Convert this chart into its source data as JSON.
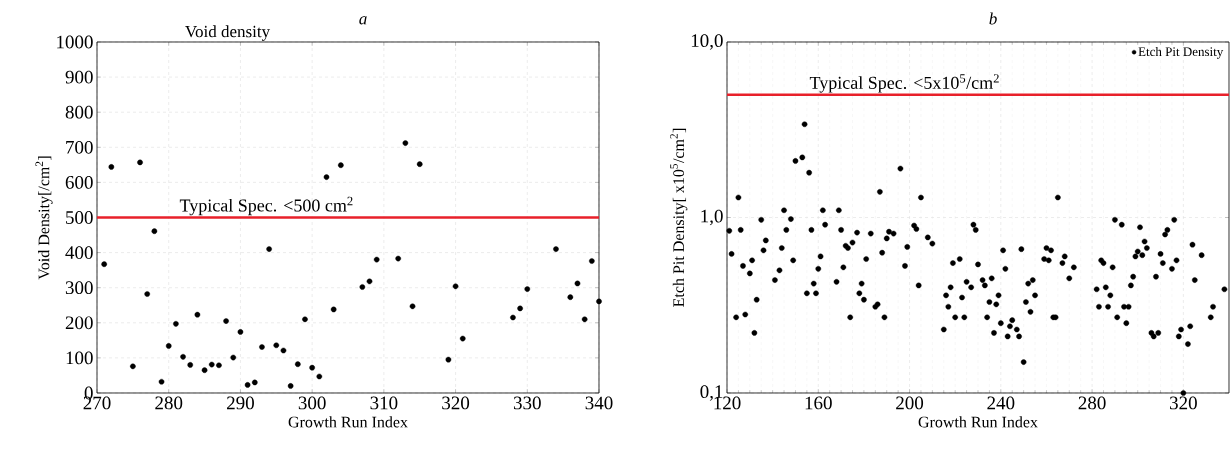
{
  "chart_data": [
    {
      "type": "scatter",
      "title": "a",
      "xlabel": "Growth Run Index",
      "ylabel": "Void Density[/cm$^{2}$]",
      "annotations": [
        "Void density"
      ],
      "x": [
        271,
        272,
        275,
        276,
        277,
        278,
        279,
        280,
        281,
        282,
        283,
        284,
        285,
        286,
        287,
        288,
        289,
        290,
        291,
        292,
        293,
        294,
        295,
        296,
        297,
        298,
        299,
        300,
        301,
        302,
        303,
        304,
        307,
        308,
        309,
        312,
        313,
        314,
        315,
        319,
        320,
        321,
        328,
        329,
        330,
        334,
        336,
        337,
        338,
        339,
        340
      ],
      "series": [
        {
          "color": "#000000",
          "values": [
            367,
            644,
            76,
            657,
            282,
            461,
            32,
            134,
            197,
            103,
            80,
            223,
            65,
            81,
            79,
            205,
            101,
            174,
            23,
            30,
            131,
            410,
            136,
            121,
            20,
            82,
            210,
            72,
            47,
            615,
            238,
            649,
            302,
            318,
            380,
            383,
            712,
            247,
            652,
            95,
            304,
            155,
            215,
            241,
            296,
            410,
            273,
            312,
            210,
            376,
            261
          ]
        }
      ],
      "xlim": [
        270,
        340
      ],
      "xticks": [
        270,
        280,
        290,
        300,
        310,
        320,
        330,
        340
      ],
      "ylim": [
        0,
        1000
      ],
      "yticks": [
        0,
        100,
        200,
        300,
        400,
        500,
        600,
        700,
        800,
        900,
        1000
      ],
      "ref_lines": [
        {
          "axis": "y",
          "value": 500,
          "label": "Typical Spec. <500 cm$^{2}$",
          "color": "#e8202a"
        }
      ],
      "grid": true,
      "marker": "circle",
      "legend": false
    },
    {
      "type": "scatter",
      "title": "b",
      "xlabel": "Growth Run Index",
      "ylabel": "Etch Pit Density[ x10$^{5}$/cm$^{2}$]",
      "x": [
        121,
        122,
        124,
        125,
        126,
        127,
        128,
        130,
        131,
        132,
        133,
        135,
        136,
        137,
        141,
        143,
        144,
        145,
        146,
        148,
        149,
        150,
        153,
        154,
        155,
        156,
        157,
        158,
        159,
        160,
        161,
        162,
        163,
        168,
        169,
        170,
        171,
        172,
        173,
        174,
        175,
        177,
        178,
        179,
        180,
        181,
        183,
        185,
        186,
        187,
        188,
        189,
        190,
        191,
        193,
        196,
        198,
        199,
        202,
        203,
        204,
        205,
        208,
        210,
        215,
        216,
        217,
        218,
        219,
        220,
        222,
        223,
        224,
        225,
        227,
        228,
        229,
        230,
        232,
        233,
        234,
        235,
        236,
        237,
        238,
        239,
        240,
        241,
        242,
        243,
        244,
        245,
        247,
        248,
        249,
        250,
        251,
        252,
        253,
        254,
        255,
        259,
        260,
        261,
        262,
        263,
        264,
        265,
        267,
        268,
        270,
        272,
        282,
        283,
        284,
        285,
        286,
        287,
        288,
        289,
        290,
        291,
        293,
        294,
        295,
        296,
        297,
        298,
        299,
        300,
        301,
        302,
        303,
        304,
        306,
        307,
        308,
        309,
        310,
        311,
        312,
        313,
        315,
        316,
        317,
        318,
        319,
        320,
        322,
        323,
        324,
        325,
        328,
        332,
        333,
        338
      ],
      "series": [
        {
          "name": "Etch Pit Density",
          "color": "#000000",
          "values": [
            0.84,
            0.62,
            0.27,
            1.3,
            0.85,
            0.53,
            0.28,
            0.48,
            0.57,
            0.22,
            0.34,
            0.97,
            0.65,
            0.74,
            0.44,
            0.5,
            0.67,
            1.1,
            0.85,
            0.98,
            0.57,
            2.1,
            2.2,
            3.4,
            0.37,
            1.8,
            0.85,
            0.42,
            0.37,
            0.51,
            0.6,
            1.1,
            0.91,
            0.43,
            1.1,
            0.85,
            0.52,
            0.69,
            0.67,
            0.27,
            0.72,
            0.82,
            0.37,
            0.42,
            0.34,
            0.58,
            0.81,
            0.31,
            0.32,
            1.4,
            0.63,
            0.27,
            0.76,
            0.83,
            0.81,
            1.9,
            0.53,
            0.68,
            0.9,
            0.86,
            0.41,
            1.3,
            0.77,
            0.71,
            0.23,
            0.36,
            0.31,
            0.4,
            0.55,
            0.27,
            0.58,
            0.35,
            0.27,
            0.43,
            0.4,
            0.91,
            0.85,
            0.54,
            0.44,
            0.41,
            0.27,
            0.33,
            0.45,
            0.22,
            0.32,
            0.36,
            0.25,
            0.65,
            0.51,
            0.21,
            0.24,
            0.26,
            0.23,
            0.21,
            0.66,
            0.15,
            0.33,
            0.42,
            0.29,
            0.44,
            0.36,
            0.58,
            0.67,
            0.57,
            0.65,
            0.27,
            0.27,
            1.3,
            0.55,
            0.6,
            0.45,
            0.52,
            0.39,
            0.31,
            0.57,
            0.55,
            0.4,
            0.31,
            0.36,
            0.52,
            0.97,
            0.27,
            0.91,
            0.31,
            0.25,
            0.31,
            0.41,
            0.46,
            0.6,
            0.64,
            0.88,
            0.61,
            0.73,
            0.67,
            0.22,
            0.21,
            0.46,
            0.22,
            0.62,
            0.55,
            0.8,
            0.85,
            0.51,
            0.97,
            0.57,
            0.21,
            0.23,
            0.1,
            0.19,
            0.24,
            0.7,
            0.44,
            0.61,
            0.27,
            0.31,
            0.39
          ]
        }
      ],
      "xlim": [
        120,
        340
      ],
      "xticks": [
        120,
        160,
        200,
        240,
        280,
        320
      ],
      "ylim": [
        0.1,
        10
      ],
      "yticks": [
        {
          "value": 0.1,
          "label": "0,1"
        },
        {
          "value": 1,
          "label": "1,0"
        },
        {
          "value": 10,
          "label": "10,0"
        }
      ],
      "log": "y",
      "ref_lines": [
        {
          "axis": "y",
          "value": 5,
          "label": "Typical Spec. <5x10$^{5}$/cm$^{2}$",
          "color": "#e8202a"
        }
      ],
      "grid": true,
      "marker": "circle",
      "legend": "top right"
    }
  ]
}
